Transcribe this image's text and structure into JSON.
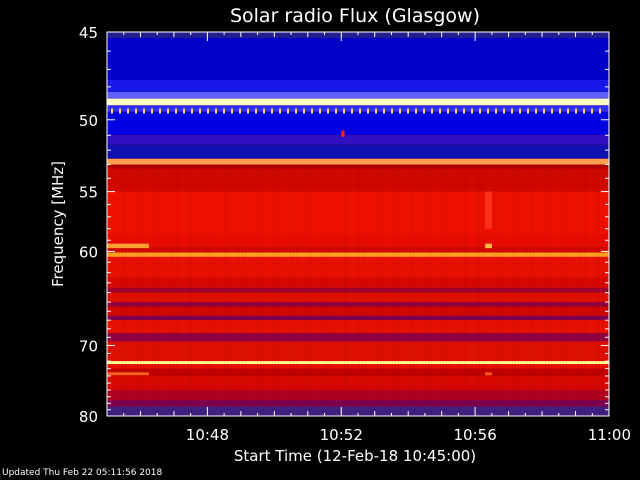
{
  "chart_data": {
    "type": "heatmap",
    "title": "Solar radio Flux (Glasgow)",
    "xlabel": "Start Time (12-Feb-18 10:45:00)",
    "ylabel": "Frequency [MHz]",
    "x_range_minutes": [
      0,
      15
    ],
    "x_ticks": [
      {
        "minute": 3,
        "label": "10:48"
      },
      {
        "minute": 7,
        "label": "10:52"
      },
      {
        "minute": 11,
        "label": "10:56"
      },
      {
        "minute": 15,
        "label": "11:00"
      }
    ],
    "y_range_mhz": [
      45,
      80
    ],
    "y_axis_scale": "reciprocal",
    "y_ticks": [
      {
        "mhz": 45,
        "label": "45"
      },
      {
        "mhz": 50,
        "label": "50"
      },
      {
        "mhz": 55,
        "label": "55"
      },
      {
        "mhz": 60,
        "label": "60"
      },
      {
        "mhz": 70,
        "label": "70"
      },
      {
        "mhz": 80,
        "label": "80"
      }
    ],
    "colormap": [
      "#0a0a60",
      "#1010e0",
      "#6010a0",
      "#c00000",
      "#ff2000",
      "#ff8000",
      "#ffff80"
    ],
    "frequency_bands": [
      {
        "from_mhz": 45.0,
        "to_mhz": 45.3,
        "color": "#202090"
      },
      {
        "from_mhz": 45.3,
        "to_mhz": 47.6,
        "color": "#0000c8"
      },
      {
        "from_mhz": 47.6,
        "to_mhz": 48.3,
        "color": "#1818e8"
      },
      {
        "from_mhz": 48.3,
        "to_mhz": 48.7,
        "color": "#6060ff"
      },
      {
        "from_mhz": 48.7,
        "to_mhz": 49.1,
        "color": "#ffffc0"
      },
      {
        "from_mhz": 49.1,
        "to_mhz": 49.5,
        "color": "#3030ff"
      },
      {
        "from_mhz": 49.5,
        "to_mhz": 51.0,
        "color": "#0000e0"
      },
      {
        "from_mhz": 51.0,
        "to_mhz": 51.6,
        "color": "#3010c0"
      },
      {
        "from_mhz": 51.6,
        "to_mhz": 52.6,
        "color": "#1010b0"
      },
      {
        "from_mhz": 52.6,
        "to_mhz": 53.0,
        "color": "#ffa050"
      },
      {
        "from_mhz": 53.0,
        "to_mhz": 53.3,
        "color": "#b00000"
      },
      {
        "from_mhz": 53.3,
        "to_mhz": 55.0,
        "color": "#d00800"
      },
      {
        "from_mhz": 55.0,
        "to_mhz": 58.5,
        "color": "#f01000"
      },
      {
        "from_mhz": 58.5,
        "to_mhz": 59.6,
        "color": "#e80c00"
      },
      {
        "from_mhz": 59.6,
        "to_mhz": 60.1,
        "color": "#d00800"
      },
      {
        "from_mhz": 60.1,
        "to_mhz": 60.5,
        "color": "#ffa020"
      },
      {
        "from_mhz": 60.5,
        "to_mhz": 62.5,
        "color": "#e81000"
      },
      {
        "from_mhz": 62.5,
        "to_mhz": 63.5,
        "color": "#d80800"
      },
      {
        "from_mhz": 63.5,
        "to_mhz": 64.0,
        "color": "#a00030"
      },
      {
        "from_mhz": 64.0,
        "to_mhz": 65.0,
        "color": "#e01000"
      },
      {
        "from_mhz": 65.0,
        "to_mhz": 65.5,
        "color": "#900040"
      },
      {
        "from_mhz": 65.5,
        "to_mhz": 66.5,
        "color": "#d00800"
      },
      {
        "from_mhz": 66.5,
        "to_mhz": 67.0,
        "color": "#800050"
      },
      {
        "from_mhz": 67.0,
        "to_mhz": 68.5,
        "color": "#e81000"
      },
      {
        "from_mhz": 68.5,
        "to_mhz": 69.5,
        "color": "#900040"
      },
      {
        "from_mhz": 69.5,
        "to_mhz": 72.0,
        "color": "#e01000"
      },
      {
        "from_mhz": 72.0,
        "to_mhz": 72.4,
        "color": "#ffff90"
      },
      {
        "from_mhz": 72.4,
        "to_mhz": 73.0,
        "color": "#e81000"
      },
      {
        "from_mhz": 73.0,
        "to_mhz": 74.0,
        "color": "#c00000"
      },
      {
        "from_mhz": 74.0,
        "to_mhz": 76.0,
        "color": "#d80800"
      },
      {
        "from_mhz": 76.0,
        "to_mhz": 77.5,
        "color": "#b00020"
      },
      {
        "from_mhz": 77.5,
        "to_mhz": 78.5,
        "color": "#800050"
      },
      {
        "from_mhz": 78.5,
        "to_mhz": 80.0,
        "color": "#402080"
      }
    ],
    "features": [
      {
        "kind": "burst",
        "minute_from": 0.0,
        "minute_to": 1.25,
        "mhz_from": 59.3,
        "mhz_to": 59.7,
        "color": "#ffa030"
      },
      {
        "kind": "burst",
        "minute_from": 11.3,
        "minute_to": 11.5,
        "mhz_from": 59.3,
        "mhz_to": 59.7,
        "color": "#ffc040"
      },
      {
        "kind": "burst",
        "minute_from": 0.0,
        "minute_to": 1.25,
        "mhz_from": 73.5,
        "mhz_to": 73.9,
        "color": "#ff6020"
      },
      {
        "kind": "burst",
        "minute_from": 11.3,
        "minute_to": 11.5,
        "mhz_from": 73.5,
        "mhz_to": 73.9,
        "color": "#ff6020"
      },
      {
        "kind": "burst",
        "minute_from": 11.3,
        "minute_to": 11.5,
        "mhz_from": 55.0,
        "mhz_to": 58.0,
        "color": "#ff3020"
      },
      {
        "kind": "spike",
        "minute_from": 7.0,
        "minute_to": 7.1,
        "mhz_from": 50.7,
        "mhz_to": 51.1,
        "color": "#ff2020"
      }
    ]
  },
  "footer": {
    "updated_text": "Updated Thu Feb 22 05:11:56 2018"
  }
}
